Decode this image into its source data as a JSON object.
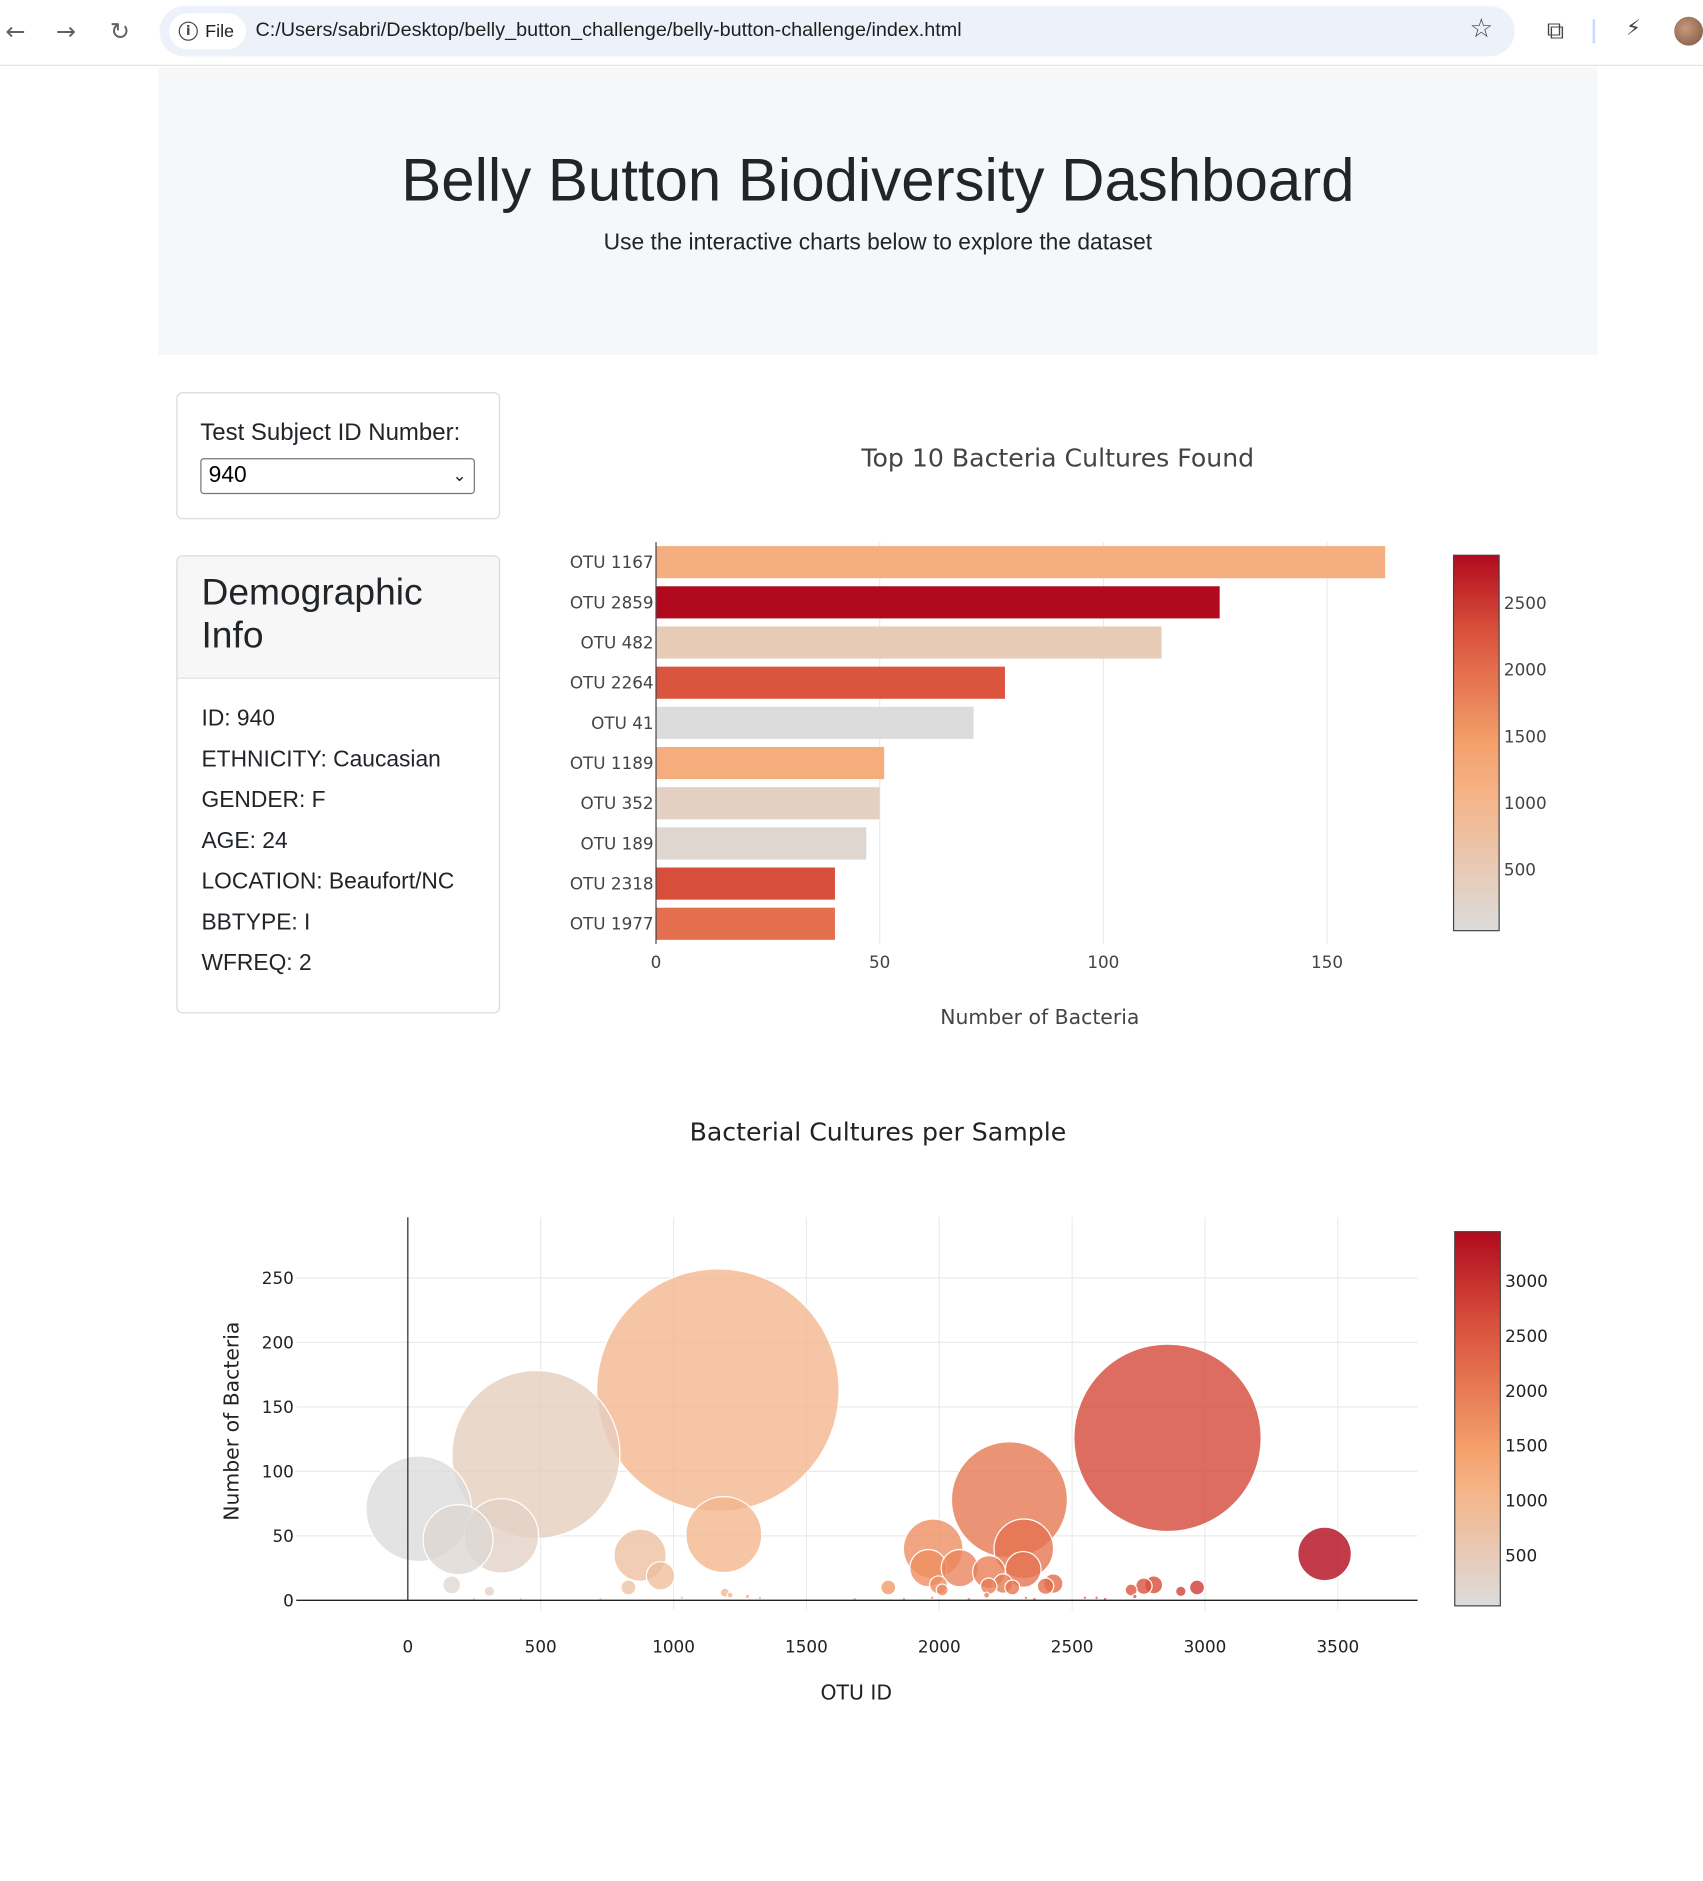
{
  "browser": {
    "chip_label": "File",
    "url": "C:/Users/sabri/Desktop/belly_button_challenge/belly-button-challenge/index.html",
    "icons": [
      "back-arrow-icon",
      "forward-arrow-icon",
      "reload-icon",
      "info-icon",
      "star-icon",
      "extensions-icon",
      "performance-icon",
      "profile-avatar"
    ]
  },
  "header": {
    "title": "Belly Button Biodiversity Dashboard",
    "subtitle": "Use the interactive charts below to explore the dataset"
  },
  "selector": {
    "label": "Test Subject ID Number:",
    "selected": "940"
  },
  "demographics": {
    "title": "Demographic Info",
    "items": [
      "ID: 940",
      "ETHNICITY: Caucasian",
      "GENDER: F",
      "AGE: 24",
      "LOCATION: Beaufort/NC",
      "BBTYPE: I",
      "WFREQ: 2"
    ]
  },
  "chart_data": [
    {
      "type": "bar",
      "orientation": "horizontal",
      "title": "Top 10 Bacteria Cultures Found",
      "xlabel": "Number of Bacteria",
      "ylabel": "",
      "xlim": [
        0,
        163
      ],
      "xticks": [
        0,
        50,
        100,
        150
      ],
      "grid": true,
      "categories": [
        "OTU 1167",
        "OTU 2859",
        "OTU 482",
        "OTU 2264",
        "OTU 41",
        "OTU 1189",
        "OTU 352",
        "OTU 189",
        "OTU 2318",
        "OTU 1977"
      ],
      "values": [
        163,
        126,
        113,
        78,
        71,
        51,
        50,
        47,
        40,
        40
      ],
      "color_values": [
        1167,
        2859,
        482,
        2264,
        41,
        1189,
        352,
        189,
        2318,
        1977
      ],
      "colorscale": "Reds-like (grey to dark red)",
      "colorbar": {
        "range": [
          41,
          2859
        ],
        "ticks": [
          500,
          1000,
          1500,
          2000,
          2500
        ]
      }
    },
    {
      "type": "scatter",
      "subtype": "bubble",
      "title": "Bacterial Cultures per Sample",
      "xlabel": "OTU ID",
      "ylabel": "Number of Bacteria",
      "xlim": [
        -420,
        3800
      ],
      "ylim": [
        -8,
        297
      ],
      "xticks": [
        0,
        500,
        1000,
        1500,
        2000,
        2500,
        3000,
        3500
      ],
      "yticks": [
        0,
        50,
        100,
        150,
        200,
        250
      ],
      "grid": true,
      "colorscale": "Reds-like (grey to dark red)",
      "colorbar": {
        "range": [
          41,
          3450
        ],
        "ticks": [
          500,
          1000,
          1500,
          2000,
          2500,
          3000
        ]
      },
      "points": [
        {
          "x": 1167,
          "y": 163
        },
        {
          "x": 2859,
          "y": 126
        },
        {
          "x": 482,
          "y": 113
        },
        {
          "x": 2264,
          "y": 78
        },
        {
          "x": 41,
          "y": 71
        },
        {
          "x": 1189,
          "y": 51
        },
        {
          "x": 352,
          "y": 50
        },
        {
          "x": 189,
          "y": 47
        },
        {
          "x": 2318,
          "y": 40
        },
        {
          "x": 1977,
          "y": 40
        },
        {
          "x": 3450,
          "y": 36
        },
        {
          "x": 874,
          "y": 35
        },
        {
          "x": 2316,
          "y": 24
        },
        {
          "x": 2187,
          "y": 22
        },
        {
          "x": 1959,
          "y": 25
        },
        {
          "x": 2077,
          "y": 25
        },
        {
          "x": 951,
          "y": 19
        },
        {
          "x": 2186,
          "y": 11
        },
        {
          "x": 2240,
          "y": 13
        },
        {
          "x": 1997,
          "y": 12
        },
        {
          "x": 2275,
          "y": 10
        },
        {
          "x": 2011,
          "y": 8
        },
        {
          "x": 2429,
          "y": 13
        },
        {
          "x": 2400,
          "y": 11
        },
        {
          "x": 2807,
          "y": 12
        },
        {
          "x": 2770,
          "y": 11
        },
        {
          "x": 2970,
          "y": 10
        },
        {
          "x": 2909,
          "y": 7
        },
        {
          "x": 2722,
          "y": 8
        },
        {
          "x": 1808,
          "y": 10
        },
        {
          "x": 165,
          "y": 12
        },
        {
          "x": 830,
          "y": 10
        },
        {
          "x": 307,
          "y": 7
        },
        {
          "x": 1193,
          "y": 6
        },
        {
          "x": 1213,
          "y": 4
        },
        {
          "x": 1278,
          "y": 3
        },
        {
          "x": 1325,
          "y": 2
        },
        {
          "x": 2178,
          "y": 4
        },
        {
          "x": 2736,
          "y": 3
        },
        {
          "x": 1031,
          "y": 2
        },
        {
          "x": 1973,
          "y": 2
        },
        {
          "x": 2326,
          "y": 2
        },
        {
          "x": 2548,
          "y": 2
        },
        {
          "x": 2592,
          "y": 2
        },
        {
          "x": 1682,
          "y": 1
        },
        {
          "x": 725,
          "y": 1
        },
        {
          "x": 249,
          "y": 1
        },
        {
          "x": 425,
          "y": 1
        },
        {
          "x": 1867,
          "y": 1
        },
        {
          "x": 2111,
          "y": 1
        },
        {
          "x": 2358,
          "y": 1
        },
        {
          "x": 2624,
          "y": 1
        }
      ]
    }
  ]
}
